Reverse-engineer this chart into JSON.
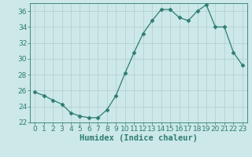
{
  "x": [
    0,
    1,
    2,
    3,
    4,
    5,
    6,
    7,
    8,
    9,
    10,
    11,
    12,
    13,
    14,
    15,
    16,
    17,
    18,
    19,
    20,
    21,
    22,
    23
  ],
  "y": [
    25.8,
    25.4,
    24.8,
    24.3,
    23.2,
    22.8,
    22.6,
    22.6,
    23.6,
    25.4,
    28.2,
    30.8,
    33.2,
    34.8,
    36.2,
    36.2,
    35.2,
    34.8,
    36.0,
    36.8,
    34.0,
    34.0,
    30.8,
    29.2
  ],
  "xlabel": "Humidex (Indice chaleur)",
  "xlim": [
    -0.5,
    23.5
  ],
  "ylim": [
    22,
    37
  ],
  "yticks": [
    22,
    24,
    26,
    28,
    30,
    32,
    34,
    36
  ],
  "xticks": [
    0,
    1,
    2,
    3,
    4,
    5,
    6,
    7,
    8,
    9,
    10,
    11,
    12,
    13,
    14,
    15,
    16,
    17,
    18,
    19,
    20,
    21,
    22,
    23
  ],
  "line_color": "#2e7d6e",
  "marker": "D",
  "marker_size": 2.5,
  "bg_color": "#cce8e8",
  "grid_color": "#b0cccc",
  "xlabel_fontsize": 7.5,
  "tick_fontsize": 6.5
}
